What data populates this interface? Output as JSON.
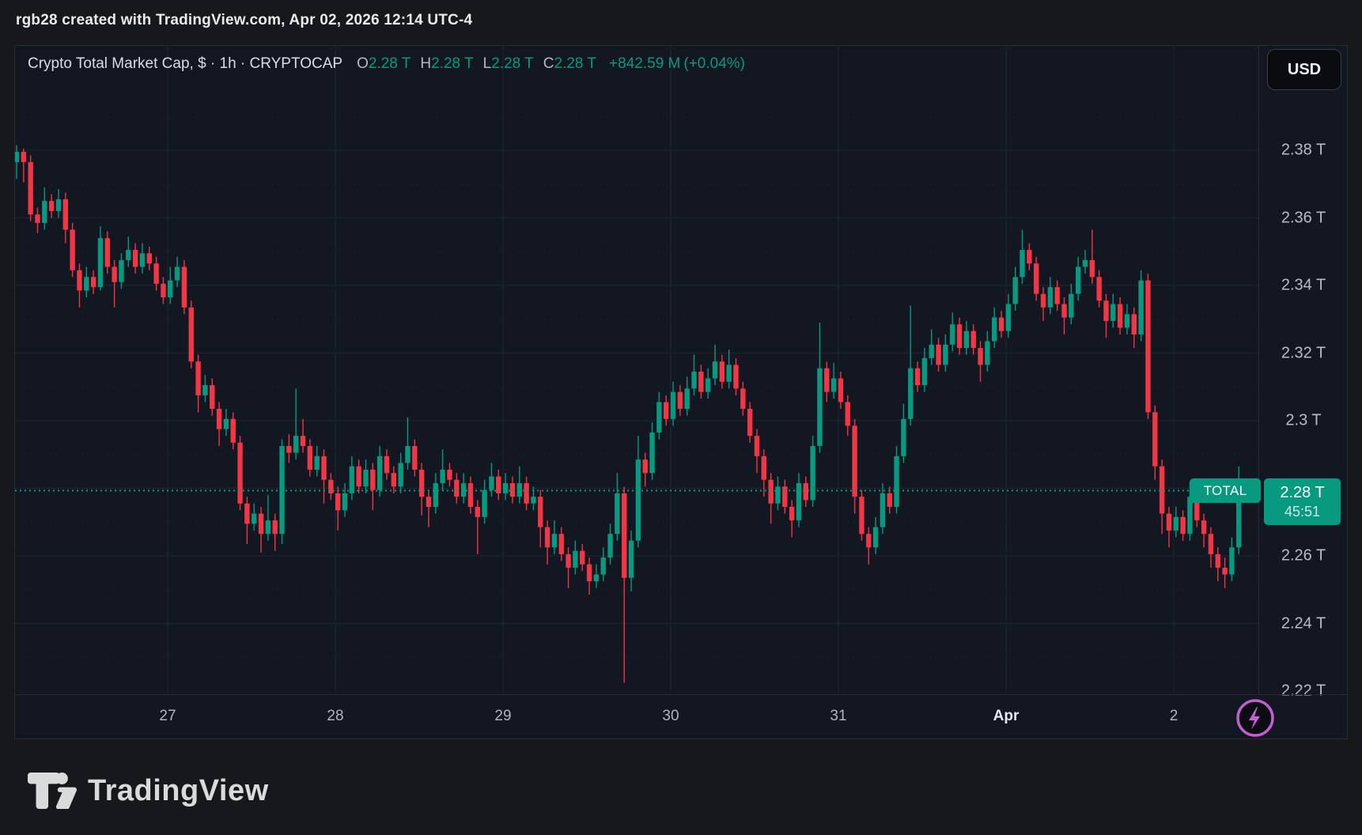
{
  "attribution": {
    "text": "rgb28 created with TradingView.com, Apr 02, 2026 12:14 UTC-4"
  },
  "header": {
    "title": "Crypto Total Market Cap, $ · 1h · CRYPTOCAP",
    "ohlc": [
      {
        "label": "O",
        "value": "2.28 T"
      },
      {
        "label": "H",
        "value": "2.28 T"
      },
      {
        "label": "L",
        "value": "2.28 T"
      },
      {
        "label": "C",
        "value": "2.28 T"
      }
    ],
    "change": "+842.59 M",
    "change_pct": "(+0.04%)"
  },
  "currency_button": {
    "label": "USD"
  },
  "price_label": {
    "name": "TOTAL",
    "price": "2.28 T",
    "countdown": "45:51"
  },
  "logo": {
    "text": "TradingView"
  },
  "colors": {
    "up": "#089981",
    "down": "#f23645",
    "chart_bg": "#131722",
    "outer_bg": "#17181c",
    "grid": "#1f2634",
    "grid_minor": "#252b3a",
    "axis_text": "#b8bcc8",
    "price_line": "#089981",
    "bolt_purple": "#c45ecf"
  },
  "price_scale": {
    "labels": [
      {
        "text": "2.38 T",
        "price": 2.38
      },
      {
        "text": "2.36 T",
        "price": 2.36
      },
      {
        "text": "2.34 T",
        "price": 2.34
      },
      {
        "text": "2.32 T",
        "price": 2.32
      },
      {
        "text": "2.3 T",
        "price": 2.3
      },
      {
        "text": "2.26 T",
        "price": 2.26
      },
      {
        "text": "2.24 T",
        "price": 2.24
      },
      {
        "text": "2.22 T",
        "price": 2.22
      }
    ]
  },
  "time_scale": {
    "labels": [
      {
        "text": "27"
      },
      {
        "text": "28"
      },
      {
        "text": "29"
      },
      {
        "text": "30"
      },
      {
        "text": "31"
      },
      {
        "text": "Apr",
        "bold": true
      },
      {
        "text": "2"
      }
    ]
  },
  "chart_data": {
    "type": "candlestick",
    "title": "Crypto Total Market Cap",
    "symbol": "CRYPTOCAP:TOTAL",
    "timeframe": "1h",
    "currency": "USD",
    "units": "trillions USD",
    "x_axis_days": [
      "27",
      "28",
      "29",
      "30",
      "31",
      "Apr",
      "2"
    ],
    "y_axis": {
      "min": 2.22,
      "max": 2.39,
      "tick_step": 0.02,
      "grid": true
    },
    "current_price": 2.2793,
    "current_price_label": "2.28 T",
    "session_low_wick": 2.2225,
    "session_high_wick": 2.3815,
    "legend_position": "none",
    "candles_format": [
      "open",
      "high",
      "low",
      "close"
    ],
    "candles": [
      [
        2.3765,
        2.3815,
        2.3715,
        2.3795
      ],
      [
        2.3795,
        2.3805,
        2.3705,
        2.3765
      ],
      [
        2.3765,
        2.3785,
        2.359,
        2.361
      ],
      [
        2.361,
        2.363,
        2.3555,
        2.3585
      ],
      [
        2.3585,
        2.369,
        2.3565,
        2.365
      ],
      [
        2.365,
        2.367,
        2.36,
        2.362
      ],
      [
        2.362,
        2.3685,
        2.36,
        2.3655
      ],
      [
        2.3655,
        2.3675,
        2.3525,
        2.3565
      ],
      [
        2.3565,
        2.3585,
        2.3425,
        2.3445
      ],
      [
        2.3445,
        2.3465,
        2.3335,
        2.3385
      ],
      [
        2.3385,
        2.3455,
        2.3365,
        2.3425
      ],
      [
        2.3425,
        2.3445,
        2.3375,
        2.3395
      ],
      [
        2.3395,
        2.3575,
        2.3385,
        2.354
      ],
      [
        2.354,
        2.356,
        2.3435,
        2.3455
      ],
      [
        2.3455,
        2.3475,
        2.3335,
        2.341
      ],
      [
        2.341,
        2.3495,
        2.339,
        2.3475
      ],
      [
        2.3475,
        2.3545,
        2.3455,
        2.3505
      ],
      [
        2.3505,
        2.3525,
        2.3435,
        2.3455
      ],
      [
        2.3455,
        2.3525,
        2.3435,
        2.3495
      ],
      [
        2.3495,
        2.3515,
        2.3445,
        2.3465
      ],
      [
        2.3465,
        2.3485,
        2.3385,
        2.3405
      ],
      [
        2.3405,
        2.3425,
        2.3345,
        2.3365
      ],
      [
        2.3365,
        2.3455,
        2.3345,
        2.3415
      ],
      [
        2.3415,
        2.3485,
        2.3395,
        2.3455
      ],
      [
        2.3455,
        2.3475,
        2.3315,
        2.3335
      ],
      [
        2.3335,
        2.3355,
        2.3155,
        2.3175
      ],
      [
        2.3175,
        2.3195,
        2.3025,
        2.3075
      ],
      [
        2.3075,
        2.3135,
        2.3055,
        2.3105
      ],
      [
        2.3105,
        2.3125,
        2.3015,
        2.3035
      ],
      [
        2.3035,
        2.3055,
        2.2925,
        2.2975
      ],
      [
        2.2975,
        2.3035,
        2.2955,
        2.3005
      ],
      [
        2.3005,
        2.3025,
        2.2915,
        2.2935
      ],
      [
        2.2935,
        2.2955,
        2.2735,
        2.2755
      ],
      [
        2.2755,
        2.2775,
        2.2635,
        2.2695
      ],
      [
        2.2695,
        2.2755,
        2.2675,
        2.2725
      ],
      [
        2.2725,
        2.2745,
        2.261,
        2.2665
      ],
      [
        2.2665,
        2.278,
        2.2645,
        2.2705
      ],
      [
        2.2705,
        2.2725,
        2.2615,
        2.2665
      ],
      [
        2.2665,
        2.2945,
        2.2635,
        2.2925
      ],
      [
        2.2925,
        2.296,
        2.2875,
        2.2905
      ],
      [
        2.2905,
        2.3095,
        2.2885,
        2.2955
      ],
      [
        2.2955,
        2.3005,
        2.2905,
        2.2925
      ],
      [
        2.2925,
        2.2945,
        2.2835,
        2.2855
      ],
      [
        2.2855,
        2.2925,
        2.2835,
        2.2895
      ],
      [
        2.2895,
        2.2915,
        2.2755,
        2.2825
      ],
      [
        2.2825,
        2.2845,
        2.2765,
        2.2785
      ],
      [
        2.2785,
        2.2805,
        2.2675,
        2.2735
      ],
      [
        2.2735,
        2.2815,
        2.2715,
        2.2785
      ],
      [
        2.2785,
        2.2895,
        2.2765,
        2.2865
      ],
      [
        2.2865,
        2.2885,
        2.2785,
        2.2805
      ],
      [
        2.2805,
        2.2885,
        2.2785,
        2.2855
      ],
      [
        2.2855,
        2.2875,
        2.2735,
        2.2795
      ],
      [
        2.2795,
        2.2925,
        2.2775,
        2.2895
      ],
      [
        2.2895,
        2.2915,
        2.2825,
        2.2845
      ],
      [
        2.2845,
        2.2865,
        2.2785,
        2.2805
      ],
      [
        2.2805,
        2.2905,
        2.2785,
        2.2875
      ],
      [
        2.2875,
        2.301,
        2.2855,
        2.2925
      ],
      [
        2.2925,
        2.2945,
        2.2835,
        2.2855
      ],
      [
        2.2855,
        2.2875,
        2.272,
        2.2775
      ],
      [
        2.2775,
        2.2795,
        2.2685,
        2.2745
      ],
      [
        2.2745,
        2.2845,
        2.2725,
        2.2815
      ],
      [
        2.2815,
        2.2915,
        2.2795,
        2.2855
      ],
      [
        2.2855,
        2.2875,
        2.2805,
        2.2825
      ],
      [
        2.2825,
        2.2845,
        2.2755,
        2.2775
      ],
      [
        2.2775,
        2.2845,
        2.2755,
        2.2815
      ],
      [
        2.2815,
        2.2835,
        2.2725,
        2.2745
      ],
      [
        2.2745,
        2.2765,
        2.2605,
        2.2715
      ],
      [
        2.2715,
        2.2825,
        2.2695,
        2.2795
      ],
      [
        2.2795,
        2.2875,
        2.2775,
        2.2835
      ],
      [
        2.2835,
        2.2855,
        2.2765,
        2.2785
      ],
      [
        2.2785,
        2.2845,
        2.2765,
        2.2815
      ],
      [
        2.2815,
        2.2835,
        2.2755,
        2.2775
      ],
      [
        2.2775,
        2.2865,
        2.2755,
        2.2815
      ],
      [
        2.2815,
        2.2835,
        2.2735,
        2.2755
      ],
      [
        2.2755,
        2.2805,
        2.2735,
        2.2775
      ],
      [
        2.2775,
        2.2795,
        2.2625,
        2.2685
      ],
      [
        2.2685,
        2.2705,
        2.2575,
        2.2625
      ],
      [
        2.2625,
        2.2705,
        2.2605,
        2.2665
      ],
      [
        2.2665,
        2.2685,
        2.2585,
        2.2605
      ],
      [
        2.2605,
        2.2625,
        2.2505,
        2.2565
      ],
      [
        2.2565,
        2.2645,
        2.2545,
        2.2615
      ],
      [
        2.2615,
        2.2635,
        2.2555,
        2.2575
      ],
      [
        2.2575,
        2.2595,
        2.2485,
        2.2525
      ],
      [
        2.2525,
        2.2575,
        2.2505,
        2.2545
      ],
      [
        2.2545,
        2.2625,
        2.2525,
        2.2595
      ],
      [
        2.2595,
        2.2695,
        2.2575,
        2.2665
      ],
      [
        2.2665,
        2.2845,
        2.2645,
        2.2785
      ],
      [
        2.2785,
        2.2805,
        2.2225,
        2.2535
      ],
      [
        2.2535,
        2.2675,
        2.2495,
        2.2645
      ],
      [
        2.2645,
        2.2955,
        2.2625,
        2.2885
      ],
      [
        2.2885,
        2.2905,
        2.2805,
        2.2845
      ],
      [
        2.2845,
        2.2995,
        2.2825,
        2.2965
      ],
      [
        2.2965,
        2.3085,
        2.2945,
        2.3055
      ],
      [
        2.3055,
        2.3075,
        2.2985,
        2.3005
      ],
      [
        2.3005,
        2.3115,
        2.2985,
        2.3085
      ],
      [
        2.3085,
        2.3105,
        2.3015,
        2.3035
      ],
      [
        2.3035,
        2.313,
        2.3015,
        2.3095
      ],
      [
        2.3095,
        2.3195,
        2.3075,
        2.3145
      ],
      [
        2.3145,
        2.3165,
        2.3065,
        2.3085
      ],
      [
        2.3085,
        2.3155,
        2.3065,
        2.3125
      ],
      [
        2.3125,
        2.3225,
        2.3105,
        2.3175
      ],
      [
        2.3175,
        2.3195,
        2.3095,
        2.3115
      ],
      [
        2.3115,
        2.321,
        2.3095,
        2.3165
      ],
      [
        2.3165,
        2.3185,
        2.3075,
        2.3095
      ],
      [
        2.3095,
        2.3115,
        2.3015,
        2.3035
      ],
      [
        2.3035,
        2.3055,
        2.2935,
        2.2955
      ],
      [
        2.2955,
        2.2975,
        2.2845,
        2.2895
      ],
      [
        2.2895,
        2.2915,
        2.2775,
        2.2825
      ],
      [
        2.2825,
        2.2845,
        2.2695,
        2.2755
      ],
      [
        2.2755,
        2.2835,
        2.2735,
        2.2805
      ],
      [
        2.2805,
        2.2825,
        2.2725,
        2.2745
      ],
      [
        2.2745,
        2.2765,
        2.2655,
        2.2705
      ],
      [
        2.2705,
        2.2845,
        2.2685,
        2.2815
      ],
      [
        2.2815,
        2.2835,
        2.2745,
        2.2765
      ],
      [
        2.2765,
        2.2955,
        2.2745,
        2.2925
      ],
      [
        2.2925,
        2.329,
        2.2905,
        2.3155
      ],
      [
        2.3155,
        2.3175,
        2.3055,
        2.3085
      ],
      [
        2.3085,
        2.317,
        2.3065,
        2.3125
      ],
      [
        2.3125,
        2.3145,
        2.3035,
        2.3055
      ],
      [
        2.3055,
        2.3075,
        2.2955,
        2.2985
      ],
      [
        2.2985,
        2.3005,
        2.2725,
        2.2775
      ],
      [
        2.2775,
        2.2795,
        2.2645,
        2.2665
      ],
      [
        2.2665,
        2.2685,
        2.2575,
        2.2625
      ],
      [
        2.2625,
        2.2715,
        2.2605,
        2.2685
      ],
      [
        2.2685,
        2.2815,
        2.2665,
        2.2785
      ],
      [
        2.2785,
        2.2805,
        2.2725,
        2.2745
      ],
      [
        2.2745,
        2.2925,
        2.2725,
        2.2895
      ],
      [
        2.2895,
        2.305,
        2.2875,
        2.3005
      ],
      [
        2.3005,
        2.334,
        2.2985,
        2.3155
      ],
      [
        2.3155,
        2.3175,
        2.3085,
        2.3105
      ],
      [
        2.3105,
        2.3215,
        2.3085,
        2.3185
      ],
      [
        2.3185,
        2.327,
        2.3165,
        2.3225
      ],
      [
        2.3225,
        2.3245,
        2.3145,
        2.3165
      ],
      [
        2.3165,
        2.3255,
        2.3145,
        2.3225
      ],
      [
        2.3225,
        2.332,
        2.3205,
        2.3285
      ],
      [
        2.3285,
        2.3305,
        2.3195,
        2.3215
      ],
      [
        2.3215,
        2.3295,
        2.3195,
        2.3265
      ],
      [
        2.3265,
        2.3285,
        2.3195,
        2.3215
      ],
      [
        2.3215,
        2.3235,
        2.3115,
        2.3165
      ],
      [
        2.3165,
        2.3265,
        2.3145,
        2.3235
      ],
      [
        2.3235,
        2.3335,
        2.3215,
        2.3305
      ],
      [
        2.3305,
        2.3325,
        2.3245,
        2.3265
      ],
      [
        2.3265,
        2.3375,
        2.3245,
        2.3345
      ],
      [
        2.3345,
        2.3455,
        2.3325,
        2.3425
      ],
      [
        2.3425,
        2.3565,
        2.3405,
        2.3505
      ],
      [
        2.3505,
        2.3525,
        2.3445,
        2.3465
      ],
      [
        2.3465,
        2.3485,
        2.3355,
        2.3375
      ],
      [
        2.3375,
        2.3395,
        2.3295,
        2.3335
      ],
      [
        2.3335,
        2.3425,
        2.3315,
        2.3395
      ],
      [
        2.3395,
        2.3415,
        2.3325,
        2.3345
      ],
      [
        2.3345,
        2.3365,
        2.3255,
        2.3305
      ],
      [
        2.3305,
        2.3405,
        2.3285,
        2.3375
      ],
      [
        2.3375,
        2.3485,
        2.3355,
        2.3455
      ],
      [
        2.3455,
        2.3505,
        2.3435,
        2.3475
      ],
      [
        2.3475,
        2.3565,
        2.3405,
        2.3425
      ],
      [
        2.3425,
        2.3445,
        2.3335,
        2.3355
      ],
      [
        2.3355,
        2.3375,
        2.3245,
        2.3295
      ],
      [
        2.3295,
        2.3375,
        2.3275,
        2.3345
      ],
      [
        2.3345,
        2.3365,
        2.3255,
        2.3275
      ],
      [
        2.3275,
        2.3345,
        2.3255,
        2.3315
      ],
      [
        2.3315,
        2.3335,
        2.3215,
        2.3255
      ],
      [
        2.3255,
        2.3445,
        2.3235,
        2.3415
      ],
      [
        2.3415,
        2.3435,
        2.3005,
        2.3025
      ],
      [
        2.3025,
        2.3045,
        2.2825,
        2.2865
      ],
      [
        2.2865,
        2.2885,
        2.2665,
        2.2725
      ],
      [
        2.2725,
        2.2745,
        2.2625,
        2.2675
      ],
      [
        2.2675,
        2.2745,
        2.2655,
        2.2715
      ],
      [
        2.2715,
        2.2735,
        2.2645,
        2.2665
      ],
      [
        2.2665,
        2.2815,
        2.2645,
        2.2775
      ],
      [
        2.2775,
        2.2795,
        2.2685,
        2.2705
      ],
      [
        2.2705,
        2.2725,
        2.2625,
        2.2665
      ],
      [
        2.2665,
        2.2685,
        2.2565,
        2.2605
      ],
      [
        2.2605,
        2.2625,
        2.2525,
        2.2565
      ],
      [
        2.2565,
        2.2595,
        2.2505,
        2.2545
      ],
      [
        2.2545,
        2.2655,
        2.2525,
        2.2625
      ],
      [
        2.2625,
        2.2865,
        2.2605,
        2.2795
      ]
    ]
  }
}
